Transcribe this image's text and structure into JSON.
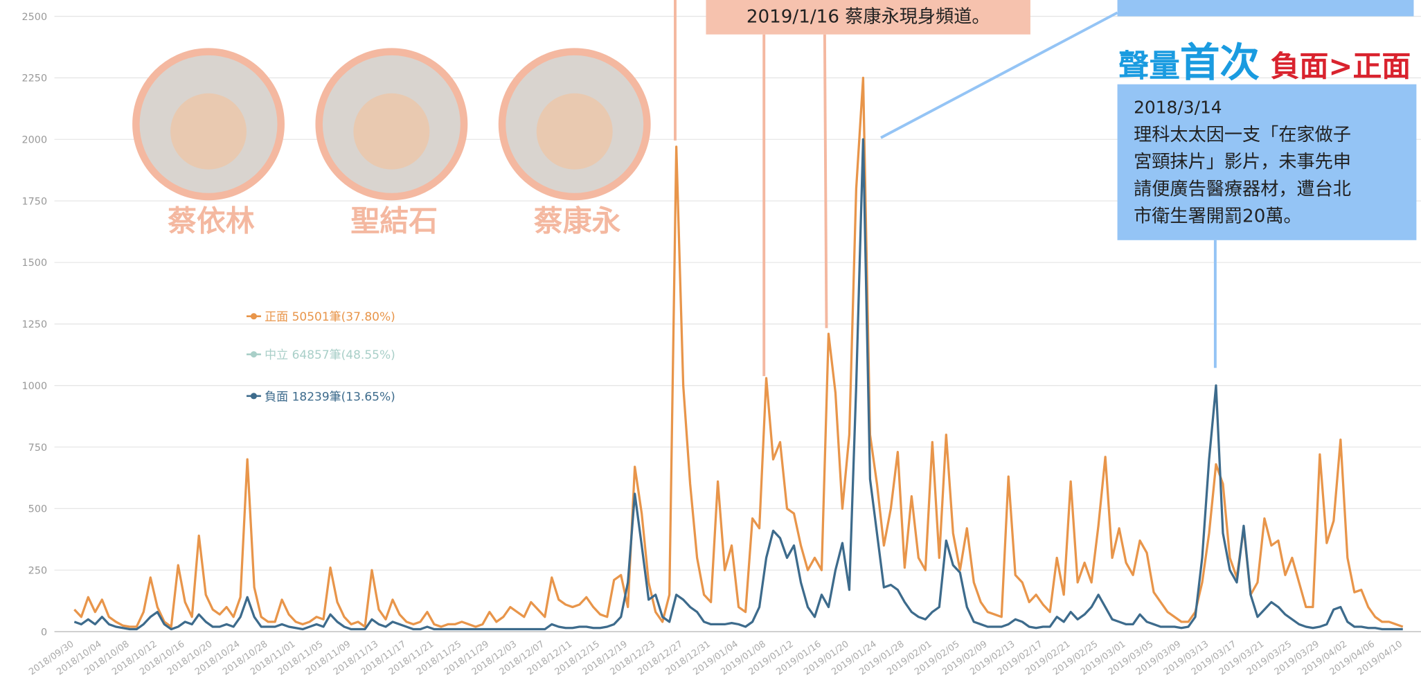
{
  "chart_data": {
    "type": "line",
    "categories": [
      "2018/09/30",
      null,
      null,
      null,
      "2018/10/04",
      null,
      null,
      null,
      "2018/10/08",
      null,
      null,
      null,
      "2018/10/12",
      null,
      null,
      null,
      "2018/10/16",
      null,
      null,
      null,
      "2018/10/20",
      null,
      null,
      null,
      "2018/10/24",
      null,
      null,
      null,
      "2018/10/28",
      null,
      null,
      null,
      "2018/11/01",
      null,
      null,
      null,
      "2018/11/05",
      null,
      null,
      null,
      "2018/11/09",
      null,
      null,
      null,
      "2018/11/13",
      null,
      null,
      null,
      "2018/11/17",
      null,
      null,
      null,
      "2018/11/21",
      null,
      null,
      null,
      "2018/11/25",
      null,
      null,
      null,
      "2018/11/29",
      null,
      null,
      null,
      "2018/12/03",
      null,
      null,
      null,
      "2018/12/07",
      null,
      null,
      null,
      "2018/12/11",
      null,
      null,
      null,
      "2018/12/15",
      null,
      null,
      null,
      "2018/12/19",
      null,
      null,
      null,
      "2018/12/23",
      null,
      null,
      null,
      "2018/12/27",
      null,
      null,
      null,
      "2018/12/31",
      null,
      null,
      null,
      "2019/01/04",
      null,
      null,
      null,
      "2019/01/08",
      null,
      null,
      null,
      "2019/01/12",
      null,
      null,
      null,
      "2019/01/16",
      null,
      null,
      null,
      "2019/01/20",
      null,
      null,
      null,
      "2019/01/24",
      null,
      null,
      null,
      "2019/01/28",
      null,
      null,
      null,
      "2019/02/01",
      null,
      null,
      null,
      "2019/02/05",
      null,
      null,
      null,
      "2019/02/09",
      null,
      null,
      null,
      "2019/02/13",
      null,
      null,
      null,
      "2019/02/17",
      null,
      null,
      null,
      "2019/02/21",
      null,
      null,
      null,
      "2019/02/25",
      null,
      null,
      null,
      "2019/03/01",
      null,
      null,
      null,
      "2019/03/05",
      null,
      null,
      null,
      "2019/03/09",
      null,
      null,
      null,
      "2019/03/13",
      null,
      null,
      null,
      "2019/03/17",
      null,
      null,
      null,
      "2019/03/21",
      null,
      null,
      null,
      "2019/03/25",
      null,
      null,
      null,
      "2019/03/29",
      null,
      null,
      null,
      "2019/04/02",
      null,
      null,
      null,
      "2019/04/06",
      null,
      null,
      null,
      "2019/04/10"
    ],
    "series": [
      {
        "name": "正面 50501筆(37.80%)",
        "color": "#e8954a",
        "values": [
          90,
          60,
          140,
          80,
          130,
          60,
          40,
          25,
          20,
          20,
          80,
          220,
          100,
          40,
          20,
          270,
          120,
          60,
          390,
          150,
          90,
          70,
          100,
          60,
          140,
          700,
          180,
          60,
          40,
          40,
          130,
          70,
          40,
          30,
          40,
          60,
          50,
          260,
          120,
          60,
          30,
          40,
          20,
          250,
          90,
          50,
          130,
          70,
          40,
          30,
          40,
          80,
          30,
          20,
          30,
          30,
          40,
          30,
          20,
          30,
          80,
          40,
          60,
          100,
          80,
          60,
          120,
          90,
          60,
          220,
          130,
          110,
          100,
          110,
          140,
          100,
          70,
          60,
          210,
          230,
          100,
          670,
          480,
          200,
          80,
          40,
          150,
          1970,
          1000,
          600,
          300,
          150,
          120,
          610,
          250,
          350,
          100,
          80,
          460,
          420,
          1030,
          700,
          770,
          500,
          480,
          350,
          250,
          300,
          250,
          1210,
          970,
          500,
          800,
          1800,
          2250,
          800,
          600,
          350,
          500,
          730,
          260,
          550,
          300,
          250,
          770,
          300,
          800,
          400,
          250,
          420,
          200,
          120,
          80,
          70,
          60,
          630,
          230,
          200,
          120,
          150,
          110,
          80,
          300,
          150,
          610,
          200,
          280,
          200,
          430,
          710,
          300,
          420,
          280,
          230,
          370,
          320,
          160,
          120,
          80,
          60,
          40,
          40,
          80,
          200,
          400,
          680,
          600,
          300,
          220,
          420,
          150,
          200,
          460,
          350,
          370,
          230,
          300,
          200,
          100,
          100,
          720,
          360,
          450,
          780,
          300,
          160,
          170,
          100,
          60,
          40,
          40,
          30,
          20
        ]
      },
      {
        "name": "中立 64857筆(48.55%)",
        "color": "#a9cfc8",
        "visible": false
      },
      {
        "name": "負面 18239筆(13.65%)",
        "color": "#3d6b8c",
        "values": [
          40,
          30,
          50,
          30,
          60,
          30,
          20,
          15,
          10,
          10,
          30,
          60,
          80,
          30,
          10,
          20,
          40,
          30,
          70,
          40,
          20,
          20,
          30,
          20,
          60,
          140,
          60,
          20,
          20,
          20,
          30,
          20,
          15,
          10,
          20,
          30,
          20,
          70,
          40,
          20,
          10,
          10,
          10,
          50,
          30,
          20,
          40,
          30,
          20,
          10,
          10,
          20,
          10,
          10,
          10,
          10,
          10,
          10,
          10,
          10,
          10,
          10,
          10,
          10,
          10,
          10,
          10,
          10,
          10,
          30,
          20,
          15,
          15,
          20,
          20,
          15,
          15,
          20,
          30,
          60,
          200,
          560,
          350,
          130,
          150,
          60,
          40,
          150,
          130,
          100,
          80,
          40,
          30,
          30,
          30,
          35,
          30,
          20,
          40,
          100,
          300,
          410,
          380,
          300,
          350,
          200,
          100,
          60,
          150,
          100,
          250,
          360,
          170,
          1000,
          2000,
          620,
          400,
          180,
          190,
          170,
          120,
          80,
          60,
          50,
          80,
          100,
          370,
          270,
          240,
          100,
          40,
          30,
          20,
          20,
          20,
          30,
          50,
          40,
          20,
          15,
          20,
          20,
          60,
          40,
          80,
          50,
          70,
          100,
          150,
          100,
          50,
          40,
          30,
          30,
          70,
          40,
          30,
          20,
          20,
          20,
          15,
          20,
          60,
          300,
          700,
          1000,
          400,
          250,
          200,
          430,
          150,
          60,
          90,
          120,
          100,
          70,
          50,
          30,
          20,
          15,
          20,
          30,
          90,
          100,
          40,
          20,
          20,
          15,
          15,
          10,
          10,
          10,
          10
        ]
      }
    ],
    "ylim": [
      0,
      2500
    ],
    "yticks": [
      0,
      250,
      500,
      750,
      1000,
      1250,
      1500,
      1750,
      2000,
      2250,
      2500
    ],
    "grid": true,
    "people": [
      "蔡依林",
      "聖結石",
      "蔡康永"
    ],
    "annotation_top": "2019/1/16  蔡康永現身頻道。",
    "headline": {
      "part1": "聲量",
      "part2": "首次",
      "part3": "負面>正面"
    },
    "note": {
      "date": "2018/3/14",
      "lines": [
        "理科太太因一支「在家做子",
        "宮頸抹片」影片，未事先申",
        "請便廣告醫療器材，遭台北",
        "市衛生署開罰20萬。"
      ]
    }
  }
}
